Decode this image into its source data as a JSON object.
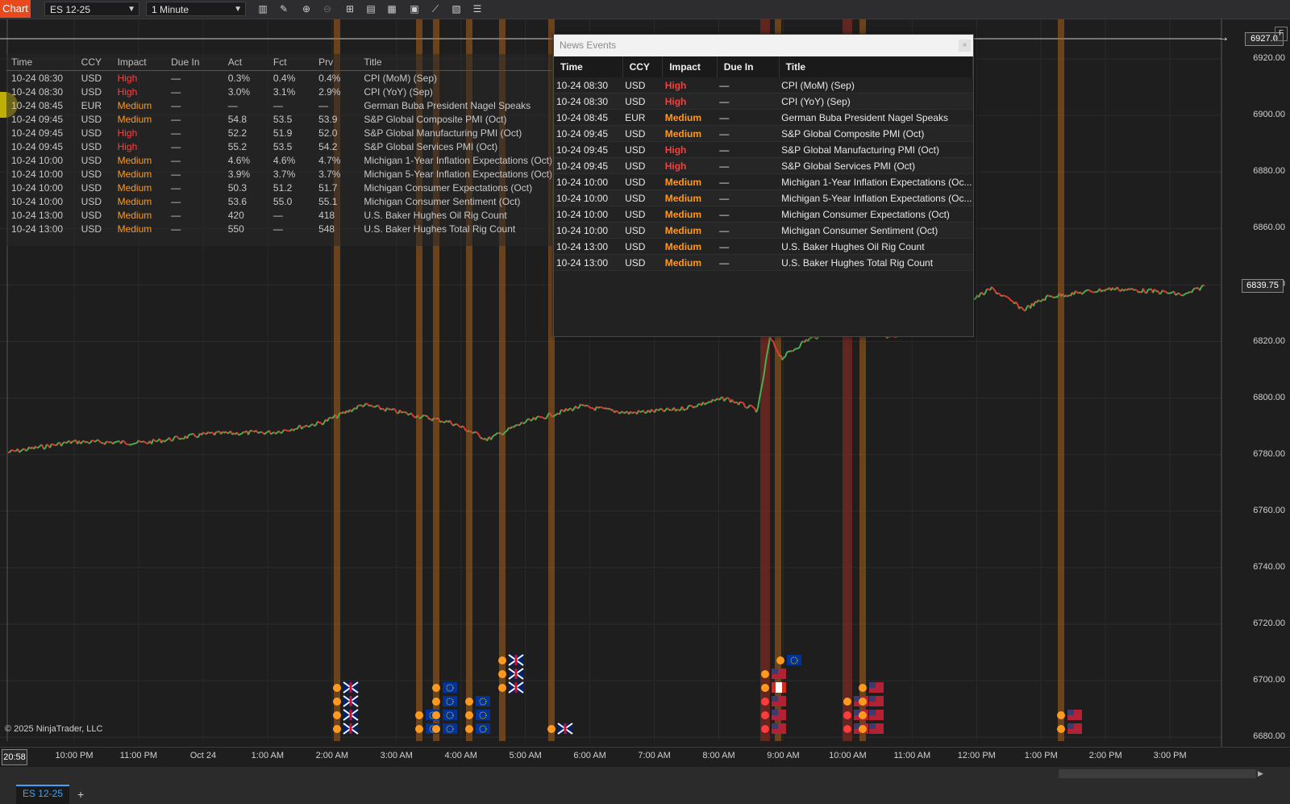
{
  "toolbar": {
    "app_tab": "Chart",
    "instrument": "ES 12-25",
    "timeframe": "1 Minute",
    "icons": [
      "bars-type-icon",
      "drawing-pencil-icon",
      "zoom-in-icon",
      "zoom-out-icon",
      "crosshair-icon",
      "data-box-icon",
      "templates-icon",
      "strategies-icon",
      "indicators-icon",
      "properties-icon",
      "list-icon"
    ]
  },
  "overlay_table": {
    "headers": [
      "Time",
      "CCY",
      "Impact",
      "Due In",
      "Act",
      "Fct",
      "Prv",
      "Title"
    ],
    "rows": [
      {
        "time": "10-24 08:30",
        "ccy": "USD",
        "impact": "High",
        "due": "—",
        "act": "0.3%",
        "fct": "0.4%",
        "prv": "0.4%",
        "title": "CPI (MoM) (Sep)"
      },
      {
        "time": "10-24 08:30",
        "ccy": "USD",
        "impact": "High",
        "due": "—",
        "act": "3.0%",
        "fct": "3.1%",
        "prv": "2.9%",
        "title": "CPI (YoY) (Sep)"
      },
      {
        "time": "10-24 08:45",
        "ccy": "EUR",
        "impact": "Medium",
        "due": "—",
        "act": "—",
        "fct": "—",
        "prv": "—",
        "title": "German Buba President Nagel Speaks"
      },
      {
        "time": "10-24 09:45",
        "ccy": "USD",
        "impact": "Medium",
        "due": "—",
        "act": "54.8",
        "fct": "53.5",
        "prv": "53.9",
        "title": "S&P Global Composite PMI (Oct)"
      },
      {
        "time": "10-24 09:45",
        "ccy": "USD",
        "impact": "High",
        "due": "—",
        "act": "52.2",
        "fct": "51.9",
        "prv": "52.0",
        "title": "S&P Global Manufacturing PMI (Oct)"
      },
      {
        "time": "10-24 09:45",
        "ccy": "USD",
        "impact": "High",
        "due": "—",
        "act": "55.2",
        "fct": "53.5",
        "prv": "54.2",
        "title": "S&P Global Services PMI (Oct)"
      },
      {
        "time": "10-24 10:00",
        "ccy": "USD",
        "impact": "Medium",
        "due": "—",
        "act": "4.6%",
        "fct": "4.6%",
        "prv": "4.7%",
        "title": "Michigan 1-Year Inflation Expectations (Oct)"
      },
      {
        "time": "10-24 10:00",
        "ccy": "USD",
        "impact": "Medium",
        "due": "—",
        "act": "3.9%",
        "fct": "3.7%",
        "prv": "3.7%",
        "title": "Michigan 5-Year Inflation Expectations (Oct)"
      },
      {
        "time": "10-24 10:00",
        "ccy": "USD",
        "impact": "Medium",
        "due": "—",
        "act": "50.3",
        "fct": "51.2",
        "prv": "51.7",
        "title": "Michigan Consumer Expectations (Oct)"
      },
      {
        "time": "10-24 10:00",
        "ccy": "USD",
        "impact": "Medium",
        "due": "—",
        "act": "53.6",
        "fct": "55.0",
        "prv": "55.1",
        "title": "Michigan Consumer Sentiment (Oct)"
      },
      {
        "time": "10-24 13:00",
        "ccy": "USD",
        "impact": "Medium",
        "due": "—",
        "act": "420",
        "fct": "—",
        "prv": "418",
        "title": "U.S. Baker Hughes Oil Rig Count"
      },
      {
        "time": "10-24 13:00",
        "ccy": "USD",
        "impact": "Medium",
        "due": "—",
        "act": "550",
        "fct": "—",
        "prv": "548",
        "title": "U.S. Baker Hughes Total Rig Count"
      }
    ]
  },
  "news_window": {
    "title": "News Events",
    "close": "×",
    "headers": [
      "Time",
      "CCY",
      "Impact",
      "Due In",
      "Title"
    ],
    "rows": [
      {
        "time": "10-24 08:30",
        "ccy": "USD",
        "impact": "High",
        "due": "—",
        "title": "CPI (MoM) (Sep)"
      },
      {
        "time": "10-24 08:30",
        "ccy": "USD",
        "impact": "High",
        "due": "—",
        "title": "CPI (YoY) (Sep)"
      },
      {
        "time": "10-24 08:45",
        "ccy": "EUR",
        "impact": "Medium",
        "due": "—",
        "title": "German Buba President Nagel Speaks"
      },
      {
        "time": "10-24 09:45",
        "ccy": "USD",
        "impact": "Medium",
        "due": "—",
        "title": "S&P Global Composite PMI (Oct)"
      },
      {
        "time": "10-24 09:45",
        "ccy": "USD",
        "impact": "High",
        "due": "—",
        "title": "S&P Global Manufacturing PMI (Oct)"
      },
      {
        "time": "10-24 09:45",
        "ccy": "USD",
        "impact": "High",
        "due": "—",
        "title": "S&P Global Services PMI (Oct)"
      },
      {
        "time": "10-24 10:00",
        "ccy": "USD",
        "impact": "Medium",
        "due": "—",
        "title": "Michigan 1-Year Inflation Expectations (Oc..."
      },
      {
        "time": "10-24 10:00",
        "ccy": "USD",
        "impact": "Medium",
        "due": "—",
        "title": "Michigan 5-Year Inflation Expectations (Oc..."
      },
      {
        "time": "10-24 10:00",
        "ccy": "USD",
        "impact": "Medium",
        "due": "—",
        "title": "Michigan Consumer Expectations (Oct)"
      },
      {
        "time": "10-24 10:00",
        "ccy": "USD",
        "impact": "Medium",
        "due": "—",
        "title": "Michigan Consumer Sentiment (Oct)"
      },
      {
        "time": "10-24 13:00",
        "ccy": "USD",
        "impact": "Medium",
        "due": "—",
        "title": "U.S. Baker Hughes Oil Rig Count"
      },
      {
        "time": "10-24 13:00",
        "ccy": "USD",
        "impact": "Medium",
        "due": "—",
        "title": "U.S. Baker Hughes Total Rig Count"
      }
    ]
  },
  "price_axis": {
    "labels": [
      "6920.00",
      "6900.00",
      "6880.00",
      "6860.00",
      "6840.00",
      "6820.00",
      "6800.00",
      "6780.00",
      "6760.00",
      "6740.00",
      "6720.00",
      "6700.00",
      "6680.00"
    ],
    "top_tag": "6927.0",
    "last_price_tag": "6839.75",
    "f_button": "F"
  },
  "time_axis": {
    "cursor": "20:58",
    "labels": [
      "10:00 PM",
      "11:00 PM",
      "Oct 24",
      "1:00 AM",
      "2:00 AM",
      "3:00 AM",
      "4:00 AM",
      "5:00 AM",
      "6:00 AM",
      "7:00 AM",
      "8:00 AM",
      "9:00 AM",
      "10:00 AM",
      "11:00 AM",
      "12:00 PM",
      "1:00 PM",
      "2:00 PM",
      "3:00 PM"
    ]
  },
  "copyright": "© 2025 NinjaTrader, LLC",
  "bottom": {
    "instrument_tab": "ES 12-25",
    "add_tab": "+"
  },
  "colors": {
    "accent": "#e8491d",
    "high": "#ff3b3b",
    "medium": "#ff9a1f",
    "up": "#4caf50",
    "down": "#e53935",
    "event_line": "#b8681a",
    "event_high_band": "#8a2a1f"
  }
}
